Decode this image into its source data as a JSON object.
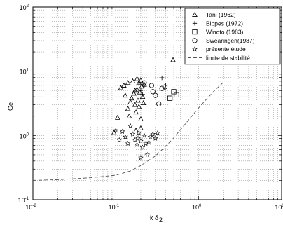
{
  "chart_data": {
    "type": "scatter",
    "xscale": "log",
    "yscale": "log",
    "xlim": [
      0.01,
      10
    ],
    "ylim": [
      0.1,
      100
    ],
    "xlabel": "k δ",
    "xlabel_subscript": "2",
    "ylabel": "Ge",
    "x_ticks": [
      {
        "value": 0.01,
        "base": "10",
        "exp": "-2"
      },
      {
        "value": 0.1,
        "base": "10",
        "exp": "-1"
      },
      {
        "value": 1,
        "base": "10",
        "exp": "0"
      },
      {
        "value": 10,
        "base": "10",
        "exp": "1"
      }
    ],
    "y_ticks": [
      {
        "value": 0.1,
        "base": "10",
        "exp": "-1"
      },
      {
        "value": 1,
        "base": "10",
        "exp": "0"
      },
      {
        "value": 10,
        "base": "10",
        "exp": "1"
      },
      {
        "value": 100,
        "base": "10",
        "exp": "2"
      }
    ],
    "grid": true,
    "legend_position": "top-right",
    "series": [
      {
        "name": "Tani (1962)",
        "marker": "triangle",
        "points": [
          [
            0.095,
            1.1
          ],
          [
            0.105,
            1.9
          ],
          [
            0.115,
            5.5
          ],
          [
            0.125,
            6.0
          ],
          [
            0.13,
            4.2
          ],
          [
            0.14,
            6.6
          ],
          [
            0.14,
            2.6
          ],
          [
            0.145,
            2.0
          ],
          [
            0.15,
            3.3
          ],
          [
            0.155,
            3.8
          ],
          [
            0.16,
            7.0
          ],
          [
            0.165,
            4.5
          ],
          [
            0.17,
            5.0
          ],
          [
            0.17,
            3.0
          ],
          [
            0.175,
            2.3
          ],
          [
            0.18,
            7.6
          ],
          [
            0.18,
            5.2
          ],
          [
            0.185,
            3.5
          ],
          [
            0.19,
            6.6
          ],
          [
            0.19,
            2.8
          ],
          [
            0.195,
            4.7
          ],
          [
            0.2,
            7.2
          ],
          [
            0.2,
            1.8
          ],
          [
            0.205,
            5.8
          ],
          [
            0.21,
            4.0
          ],
          [
            0.215,
            3.2
          ],
          [
            0.22,
            6.2
          ],
          [
            0.175,
            1.2
          ],
          [
            0.2,
            1.3
          ],
          [
            0.49,
            15.0
          ]
        ]
      },
      {
        "name": "Bippes (1972)",
        "marker": "plus",
        "points": [
          [
            0.19,
            6.5
          ],
          [
            0.2,
            5.0
          ],
          [
            0.21,
            4.4
          ],
          [
            0.22,
            6.0
          ],
          [
            0.36,
            7.9
          ],
          [
            0.4,
            6.1
          ]
        ]
      },
      {
        "name": "Winoto (1983)",
        "marker": "square",
        "points": [
          [
            0.45,
            3.8
          ],
          [
            0.5,
            4.8
          ],
          [
            0.54,
            4.3
          ]
        ]
      },
      {
        "name": "Swearingen(1987)",
        "marker": "circle",
        "points": [
          [
            0.22,
            6.6
          ],
          [
            0.27,
            6.0
          ],
          [
            0.28,
            4.8
          ],
          [
            0.3,
            4.2
          ],
          [
            0.33,
            3.1
          ],
          [
            0.36,
            5.4
          ],
          [
            0.39,
            5.7
          ]
        ]
      },
      {
        "name": "présente étude",
        "marker": "star",
        "points": [
          [
            0.1,
            1.2
          ],
          [
            0.11,
            0.85
          ],
          [
            0.12,
            1.15
          ],
          [
            0.13,
            0.95
          ],
          [
            0.14,
            0.75
          ],
          [
            0.15,
            1.4
          ],
          [
            0.16,
            1.05
          ],
          [
            0.17,
            0.85
          ],
          [
            0.18,
            0.72
          ],
          [
            0.185,
            0.9
          ],
          [
            0.19,
            1.1
          ],
          [
            0.2,
            0.82
          ],
          [
            0.22,
            1.0
          ],
          [
            0.23,
            0.75
          ],
          [
            0.25,
            0.78
          ],
          [
            0.26,
            0.95
          ],
          [
            0.28,
            1.05
          ],
          [
            0.3,
            0.9
          ],
          [
            0.32,
            1.1
          ],
          [
            0.21,
            0.65
          ],
          [
            0.24,
            0.5
          ],
          [
            0.2,
            0.45
          ]
        ]
      }
    ],
    "curve": {
      "name": "limite de stabilité",
      "style": "dashed",
      "points": [
        [
          0.01,
          0.2
        ],
        [
          0.02,
          0.205
        ],
        [
          0.05,
          0.22
        ],
        [
          0.1,
          0.24
        ],
        [
          0.15,
          0.28
        ],
        [
          0.2,
          0.34
        ],
        [
          0.3,
          0.48
        ],
        [
          0.4,
          0.68
        ],
        [
          0.5,
          0.92
        ],
        [
          0.7,
          1.55
        ],
        [
          1.0,
          2.7
        ],
        [
          1.5,
          4.8
        ],
        [
          2.0,
          6.8
        ]
      ]
    }
  }
}
